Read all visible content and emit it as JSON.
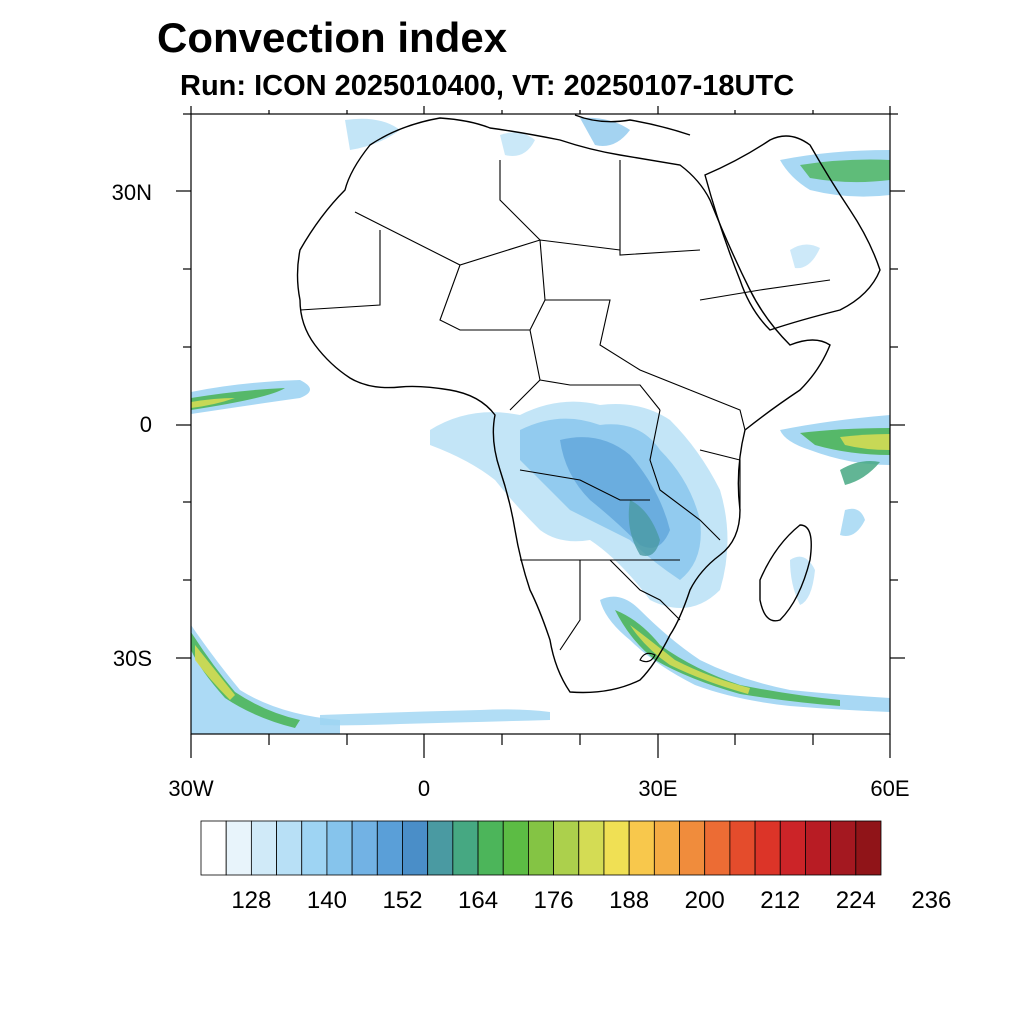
{
  "title": "Convection index",
  "subtitle": "Run: ICON 2025010400,  VT: 20250107-18UTC",
  "lat_labels": [
    "30N",
    "0",
    "30S"
  ],
  "lon_labels": [
    "30W",
    "0",
    "30E",
    "60E"
  ],
  "colorbar": {
    "colors": [
      "#ffffff",
      "#e8f4fb",
      "#d0eaf8",
      "#b8e0f6",
      "#9ed4f3",
      "#86c4ec",
      "#72b2e4",
      "#5a9fd8",
      "#4a8ec8",
      "#4a9aa2",
      "#46a882",
      "#4cb55a",
      "#5cbc44",
      "#84c444",
      "#acd04c",
      "#d4dc54",
      "#f0e054",
      "#f8c84c",
      "#f4ac44",
      "#f08c3c",
      "#ec6c34",
      "#e44c2c",
      "#dc3428",
      "#cc2428",
      "#b81c24",
      "#a41820",
      "#901418"
    ],
    "tick_labels": [
      "128",
      "140",
      "152",
      "164",
      "176",
      "188",
      "200",
      "212",
      "224",
      "236"
    ]
  },
  "map": {
    "coastline_color": "#000000",
    "icon": "africa-map"
  }
}
